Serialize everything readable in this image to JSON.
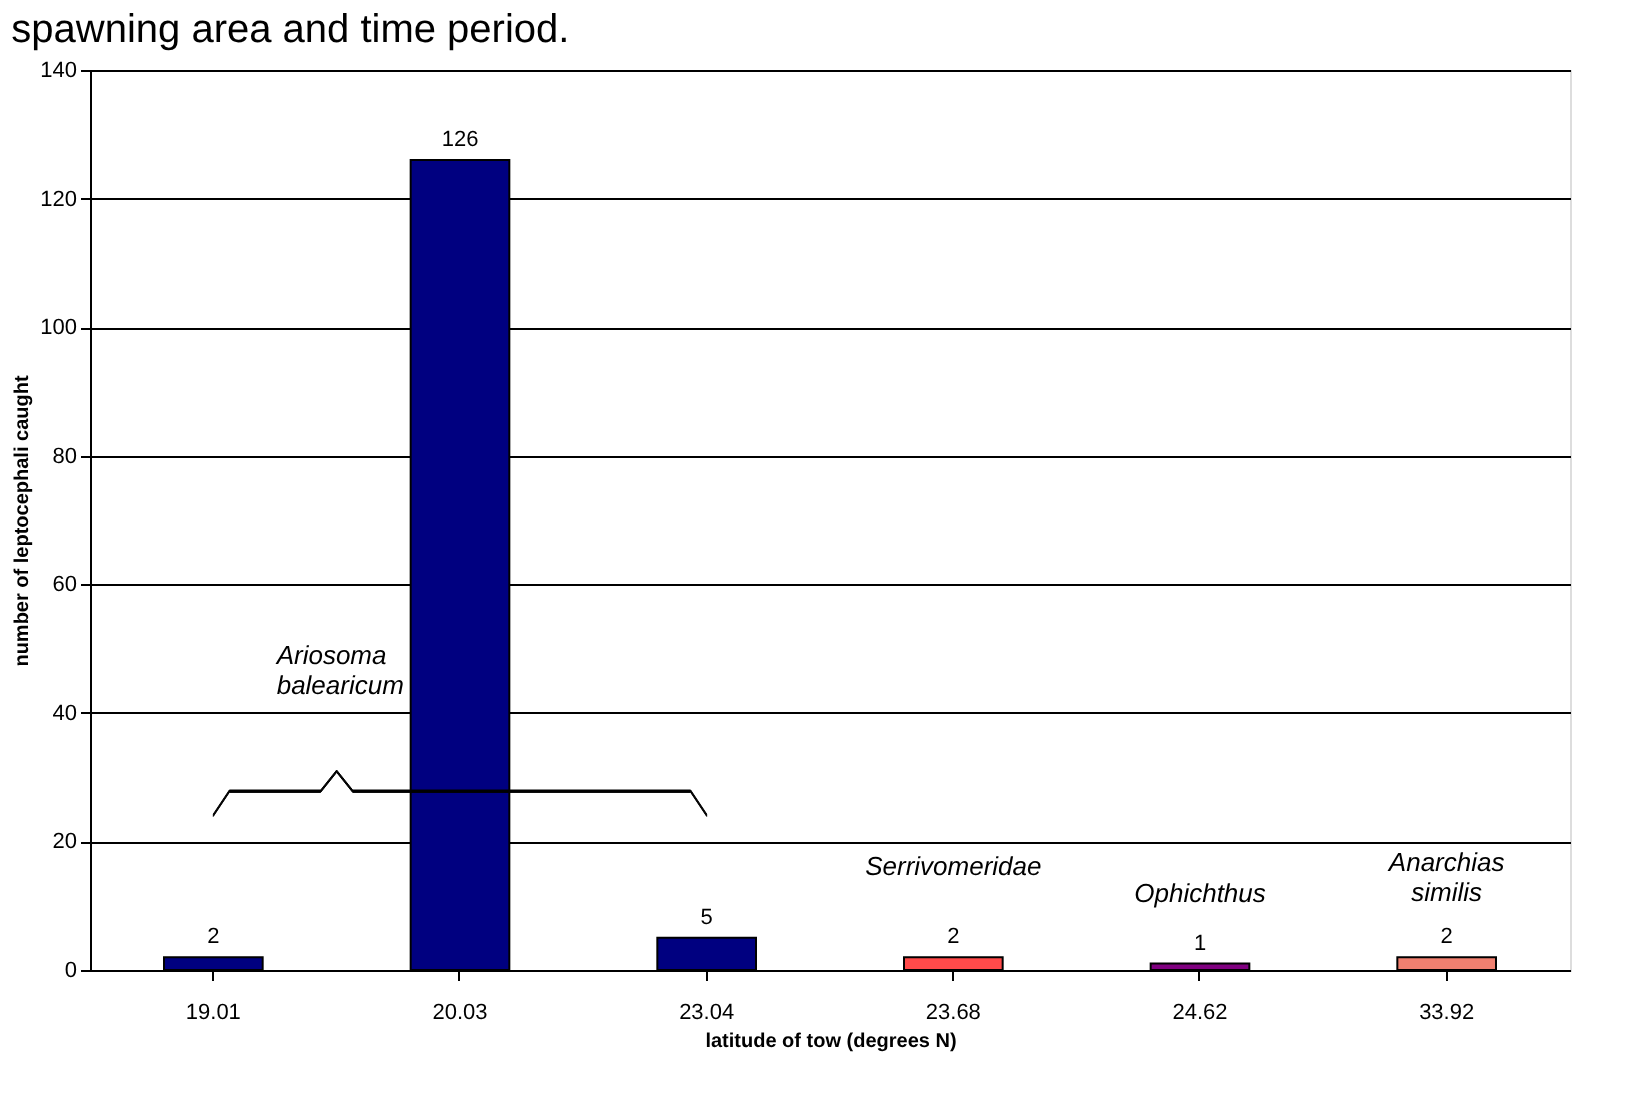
{
  "chart_data": {
    "type": "bar",
    "title": "spawning area and time period.",
    "xlabel": "latitude of tow (degrees N)",
    "ylabel": "number of leptocephali caught",
    "categories": [
      "19.01",
      "20.03",
      "23.04",
      "23.68",
      "24.62",
      "33.92"
    ],
    "values": [
      2,
      126,
      5,
      2,
      1,
      2
    ],
    "colors": [
      "#000080",
      "#000080",
      "#000080",
      "#ff4a4a",
      "#800080",
      "#f08070"
    ],
    "ylim": [
      0,
      140
    ],
    "yticks": [
      0,
      20,
      40,
      60,
      80,
      100,
      120,
      140
    ],
    "grid": "y",
    "data_labels": true,
    "annotations": [
      "Ariosoma\nbalearicum",
      "Serrivomeridae",
      "Ophichthus",
      "Anarchias\nsimilis"
    ]
  }
}
